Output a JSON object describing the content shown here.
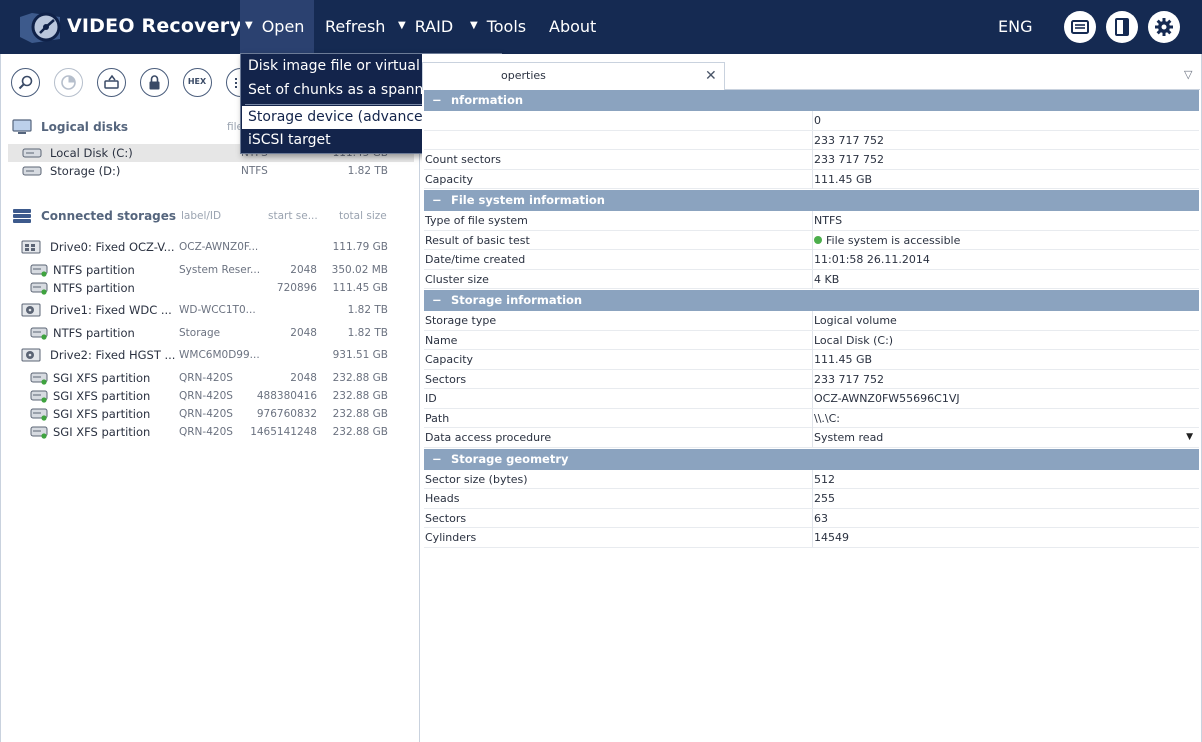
{
  "app": {
    "title": "VIDEO Recovery"
  },
  "menu": {
    "items": [
      {
        "label": "Open",
        "arrow": "▼"
      },
      {
        "label": "Refresh",
        "arrow": ""
      },
      {
        "label": "RAID",
        "arrow": "▼"
      },
      {
        "label": "Tools",
        "arrow": "▼"
      },
      {
        "label": "About",
        "arrow": ""
      }
    ],
    "language": "ENG",
    "dropdown": [
      "Disk image file or virtual disk",
      "Set of chunks as a spanned storage",
      "Storage device (advanced)",
      "iSCSI target"
    ]
  },
  "left": {
    "logical_disks": {
      "title": "Logical disks",
      "col_fs": "file",
      "items": [
        {
          "name": "Local Disk (C:)",
          "fs": "NTFS",
          "size": "111.45 GB"
        },
        {
          "name": "Storage (D:)",
          "fs": "NTFS",
          "size": "1.82 TB"
        }
      ]
    },
    "connected": {
      "title": "Connected storages",
      "col_label": "label/ID",
      "col_start": "start se...",
      "col_size": "total size",
      "items": [
        {
          "name": "Drive0: Fixed OCZ-V...",
          "label": "OCZ-AWNZ0F...",
          "start": "",
          "size": "111.79 GB",
          "type": "drive",
          "icon": "ssd-icon"
        },
        {
          "name": "NTFS partition",
          "label": "System Reser...",
          "start": "2048",
          "size": "350.02 MB",
          "type": "part"
        },
        {
          "name": "NTFS partition",
          "label": "",
          "start": "720896",
          "size": "111.45 GB",
          "type": "part"
        },
        {
          "name": "Drive1: Fixed WDC ...",
          "label": "WD-WCC1T0...",
          "start": "",
          "size": "1.82 TB",
          "type": "drive",
          "icon": "hdd-icon"
        },
        {
          "name": "NTFS partition",
          "label": "Storage",
          "start": "2048",
          "size": "1.82 TB",
          "type": "part"
        },
        {
          "name": "Drive2: Fixed HGST ...",
          "label": "WMC6M0D99...",
          "start": "",
          "size": "931.51 GB",
          "type": "drive",
          "icon": "hdd-icon"
        },
        {
          "name": "SGI XFS partition",
          "label": "QRN-420S",
          "start": "2048",
          "size": "232.88 GB",
          "type": "part"
        },
        {
          "name": "SGI XFS partition",
          "label": "QRN-420S",
          "start": "488380416",
          "size": "232.88 GB",
          "type": "part"
        },
        {
          "name": "SGI XFS partition",
          "label": "QRN-420S",
          "start": "976760832",
          "size": "232.88 GB",
          "type": "part"
        },
        {
          "name": "SGI XFS partition",
          "label": "QRN-420S",
          "start": "1465141248",
          "size": "232.88 GB",
          "type": "part"
        }
      ]
    },
    "toolbar": {
      "hex_label": "HEX"
    }
  },
  "right": {
    "tab_title": "operties",
    "groups": [
      {
        "title": "nformation",
        "rows": [
          {
            "k": "",
            "v": "0"
          },
          {
            "k": "",
            "v": "233 717 752"
          },
          {
            "k": "Count sectors",
            "v": "233 717 752"
          },
          {
            "k": "Capacity",
            "v": "111.45 GB"
          }
        ]
      },
      {
        "title": "File system information",
        "rows": [
          {
            "k": "Type of file system",
            "v": "NTFS"
          },
          {
            "k": "Result of basic test",
            "v": "File system is accessible",
            "status": true
          },
          {
            "k": "Date/time created",
            "v": "11:01:58 26.11.2014"
          },
          {
            "k": "Cluster size",
            "v": "4 KB"
          }
        ]
      },
      {
        "title": "Storage information",
        "rows": [
          {
            "k": "Storage type",
            "v": "Logical volume"
          },
          {
            "k": "Name",
            "v": "Local Disk (C:)"
          },
          {
            "k": "Capacity",
            "v": "111.45 GB"
          },
          {
            "k": "Sectors",
            "v": "233 717 752"
          },
          {
            "k": "ID",
            "v": "OCZ-AWNZ0FW55696C1VJ"
          },
          {
            "k": "Path",
            "v": "\\\\.\\C:"
          },
          {
            "k": "Data access procedure",
            "v": "System read",
            "dropdown": true
          }
        ]
      },
      {
        "title": "Storage geometry",
        "rows": [
          {
            "k": "Sector size (bytes)",
            "v": "512"
          },
          {
            "k": "Heads",
            "v": "255"
          },
          {
            "k": "Sectors",
            "v": "63"
          },
          {
            "k": "Cylinders",
            "v": "14549"
          }
        ]
      }
    ]
  },
  "colors": {
    "topbar": "#152a52",
    "group": "#8ba3bf",
    "status_ok": "#4cae4c"
  }
}
